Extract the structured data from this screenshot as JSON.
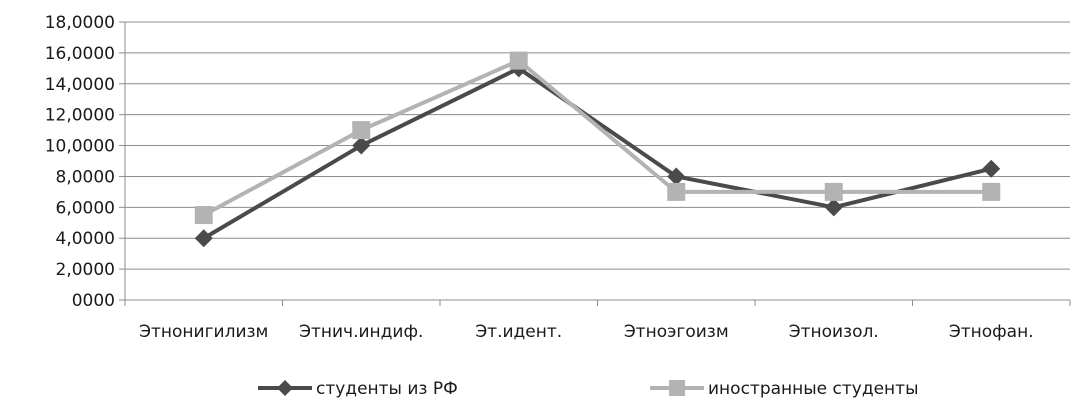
{
  "chart_data": {
    "type": "line",
    "title": "",
    "xlabel": "",
    "ylabel": "",
    "ylim": [
      0,
      18
    ],
    "ytick_step": 2,
    "ytick_labels": [
      "0000",
      "2,0000",
      "4,0000",
      "6,0000",
      "8,0000",
      "10,0000",
      "12,0000",
      "14,0000",
      "16,0000",
      "18,0000"
    ],
    "grid": true,
    "legend_position": "bottom",
    "categories": [
      "Этнонигилизм",
      "Этнич.индиф.",
      "Эт.идент.",
      "Этноэгоизм",
      "Этноизол.",
      "Этнофан."
    ],
    "series": [
      {
        "name": "студенты из РФ",
        "values": [
          4,
          10,
          15,
          8,
          6,
          8.5
        ],
        "color": "#4a4a4a",
        "marker": "diamond"
      },
      {
        "name": "иностранные студенты",
        "values": [
          5.5,
          11,
          15.5,
          7,
          7,
          7
        ],
        "color": "#b3b3b3",
        "marker": "square"
      }
    ]
  }
}
